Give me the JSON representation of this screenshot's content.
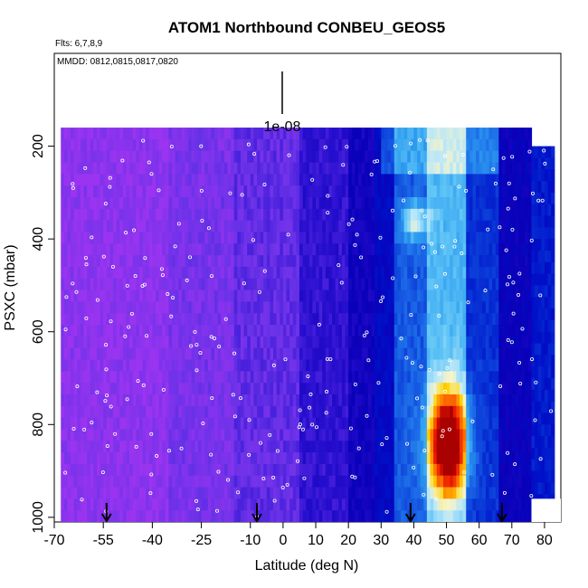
{
  "chart_data": {
    "type": "heatmap",
    "title": "ATOM1 Northbound CONBEU_GEOS5",
    "annotations": {
      "flights": "Flts: 6,7,8,9",
      "dates": "MMDD: 0812,0815,0817,0820",
      "scale_label": "1e-08"
    },
    "xlabel": "Latitude (deg N)",
    "ylabel": "PSXC (mbar)",
    "xlim": [
      -70,
      85
    ],
    "ylim": [
      1010,
      0
    ],
    "y_reversed": true,
    "x_ticks": [
      "-70",
      "-55",
      "-40",
      "-25",
      "-10",
      "0",
      "10",
      "20",
      "30",
      "40",
      "50",
      "60",
      "70",
      "80"
    ],
    "y_ticks": [
      "200",
      "400",
      "600",
      "800",
      "1000"
    ],
    "grid": false,
    "colormap": [
      "#9a34f0",
      "#6a32e8",
      "#2a10d0",
      "#0a00b8",
      "#0010c8",
      "#0a3ad8",
      "#1d6ce8",
      "#2d9cf0",
      "#5fc4f6",
      "#b6e6fb",
      "#f7f4c8",
      "#ffd200",
      "#ff7e00",
      "#ee1a00",
      "#a90000"
    ],
    "marker_latitudes": [
      -54,
      -8,
      39,
      67
    ],
    "hotspot": {
      "lat": 50,
      "pressure": 840,
      "level": "max"
    },
    "columns": [
      {
        "lat": [
          -68,
          -35
        ],
        "value": 0.02
      },
      {
        "lat": [
          -35,
          -15
        ],
        "value": 0.05
      },
      {
        "lat": [
          -15,
          5
        ],
        "value": 0.08
      },
      {
        "lat": [
          5,
          20
        ],
        "value": 0.14
      },
      {
        "lat": [
          20,
          28
        ],
        "value": 0.2
      },
      {
        "lat": [
          28,
          34
        ],
        "value": 0.26
      },
      {
        "lat": [
          34,
          44
        ],
        "value": 0.4
      },
      {
        "lat": [
          44,
          56
        ],
        "value": 0.55
      },
      {
        "lat": [
          56,
          66
        ],
        "value": 0.34
      },
      {
        "lat": [
          66,
          76
        ],
        "value": 0.22
      },
      {
        "lat": [
          76,
          83
        ],
        "value": 0.3
      }
    ]
  }
}
